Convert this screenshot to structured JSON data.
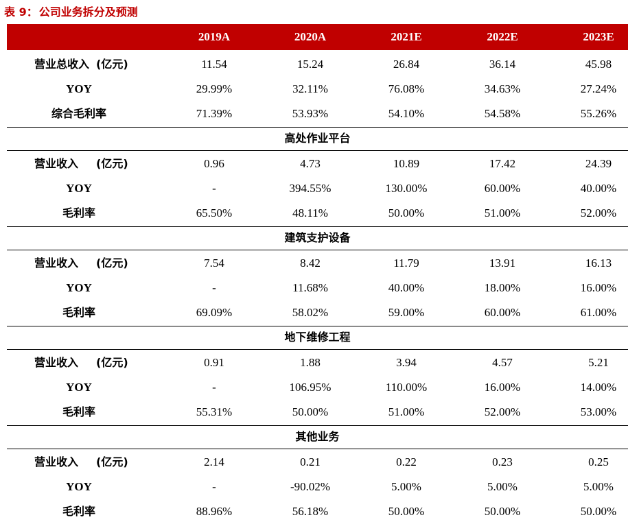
{
  "caption": {
    "number": "表 9：",
    "title": "公司业务拆分及预测"
  },
  "columns": [
    "2019A",
    "2020A",
    "2021E",
    "2022E",
    "2023E"
  ],
  "colors": {
    "header_bg": "#c00000",
    "caption": "#c00000"
  },
  "summary": {
    "rows": [
      {
        "label": "营业总收入",
        "unit": "(亿元)",
        "values": [
          "11.54",
          "15.24",
          "26.84",
          "36.14",
          "45.98"
        ]
      },
      {
        "label": "YOY",
        "values": [
          "29.99%",
          "32.11%",
          "76.08%",
          "34.63%",
          "27.24%"
        ]
      },
      {
        "label": "综合毛利率",
        "values": [
          "71.39%",
          "53.93%",
          "54.10%",
          "54.58%",
          "55.26%"
        ]
      }
    ]
  },
  "sections": [
    {
      "title": "高处作业平台",
      "rows": [
        {
          "label": "营业收入",
          "unit": "(亿元)",
          "values": [
            "0.96",
            "4.73",
            "10.89",
            "17.42",
            "24.39"
          ]
        },
        {
          "label": "YOY",
          "values": [
            "-",
            "394.55%",
            "130.00%",
            "60.00%",
            "40.00%"
          ]
        },
        {
          "label": "毛利率",
          "values": [
            "65.50%",
            "48.11%",
            "50.00%",
            "51.00%",
            "52.00%"
          ]
        }
      ]
    },
    {
      "title": "建筑支护设备",
      "rows": [
        {
          "label": "营业收入",
          "unit": "(亿元)",
          "values": [
            "7.54",
            "8.42",
            "11.79",
            "13.91",
            "16.13"
          ]
        },
        {
          "label": "YOY",
          "values": [
            "-",
            "11.68%",
            "40.00%",
            "18.00%",
            "16.00%"
          ]
        },
        {
          "label": "毛利率",
          "values": [
            "69.09%",
            "58.02%",
            "59.00%",
            "60.00%",
            "61.00%"
          ]
        }
      ]
    },
    {
      "title": "地下维修工程",
      "rows": [
        {
          "label": "营业收入",
          "unit": "(亿元)",
          "values": [
            "0.91",
            "1.88",
            "3.94",
            "4.57",
            "5.21"
          ]
        },
        {
          "label": "YOY",
          "values": [
            "-",
            "106.95%",
            "110.00%",
            "16.00%",
            "14.00%"
          ]
        },
        {
          "label": "毛利率",
          "values": [
            "55.31%",
            "50.00%",
            "51.00%",
            "52.00%",
            "53.00%"
          ]
        }
      ]
    },
    {
      "title": "其他业务",
      "rows": [
        {
          "label": "营业收入",
          "unit": "(亿元)",
          "values": [
            "2.14",
            "0.21",
            "0.22",
            "0.23",
            "0.25"
          ]
        },
        {
          "label": "YOY",
          "values": [
            "-",
            "-90.02%",
            "5.00%",
            "5.00%",
            "5.00%"
          ]
        },
        {
          "label": "毛利率",
          "values": [
            "88.96%",
            "56.18%",
            "50.00%",
            "50.00%",
            "50.00%"
          ]
        }
      ]
    }
  ]
}
